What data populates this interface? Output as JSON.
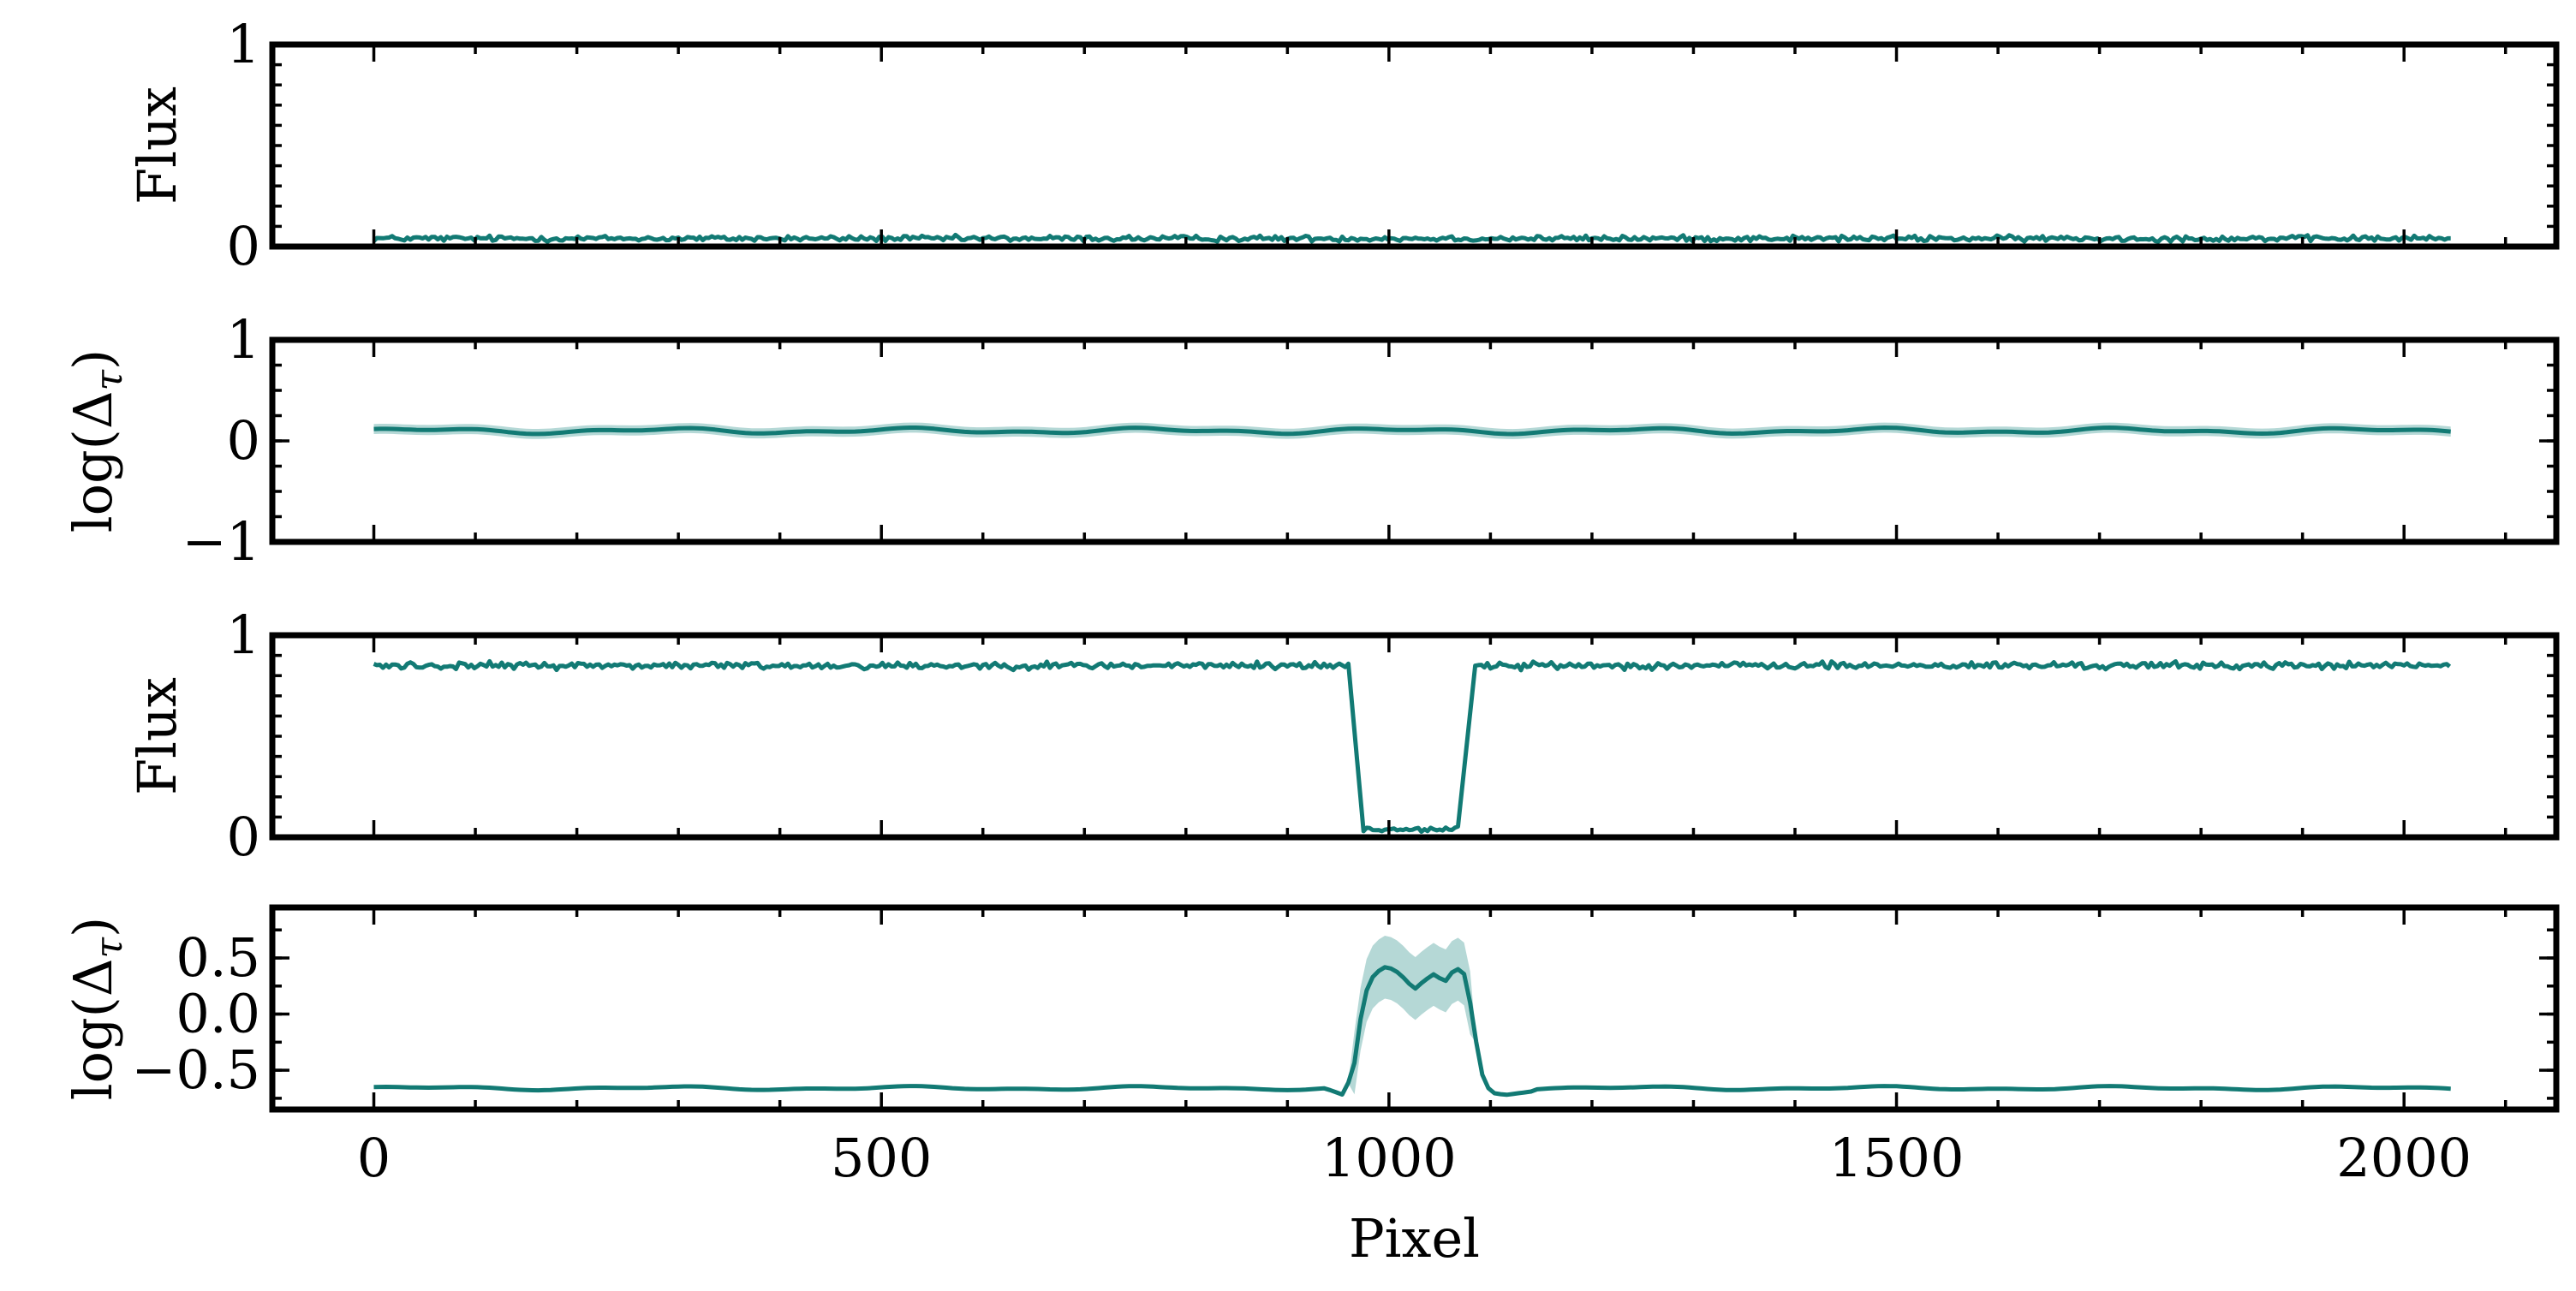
{
  "colors": {
    "line": "#127a74",
    "band": "#a8d1cf"
  },
  "xlabel": "Pixel",
  "xticks": [
    "0",
    "500",
    "1000",
    "1500",
    "2000"
  ],
  "chart_data": [
    {
      "type": "line",
      "ylabel": "Flux",
      "ylabel_math": false,
      "ylim": [
        0,
        1
      ],
      "xlim": [
        -100,
        2150
      ],
      "yticks": [
        {
          "v": 1,
          "label": "1"
        },
        {
          "v": 0,
          "label": "0"
        }
      ],
      "series": [
        {
          "kind": "noise",
          "segments": [
            {
              "x0": 0,
              "x1": 2047,
              "level": 0.04,
              "noise": 0.012
            }
          ]
        }
      ]
    },
    {
      "type": "line",
      "ylabel": "log(Δτ)",
      "ylabel_math": true,
      "ylim": [
        -1,
        1
      ],
      "xlim": [
        -100,
        2150
      ],
      "yticks": [
        {
          "v": 1,
          "label": "1"
        },
        {
          "v": 0,
          "label": "0"
        },
        {
          "v": -1,
          "label": "−1"
        }
      ],
      "series": [
        {
          "kind": "smooth",
          "baseline": 0.1,
          "wiggle": 0.02,
          "band": 0.05
        }
      ]
    },
    {
      "type": "line",
      "ylabel": "Flux",
      "ylabel_math": false,
      "ylim": [
        0,
        1
      ],
      "xlim": [
        -100,
        2150
      ],
      "yticks": [
        {
          "v": 1,
          "label": "1"
        },
        {
          "v": 0,
          "label": "0"
        }
      ],
      "series": [
        {
          "kind": "noise",
          "segments": [
            {
              "x0": 0,
              "x1": 960,
              "level": 0.85,
              "noise": 0.015
            },
            {
              "x0": 975,
              "x1": 1070,
              "level": 0.04,
              "noise": 0.012
            },
            {
              "x0": 1085,
              "x1": 2047,
              "level": 0.85,
              "noise": 0.015
            }
          ],
          "edges": [
            [
              960,
              975
            ],
            [
              1070,
              1085
            ]
          ]
        }
      ]
    },
    {
      "type": "line",
      "ylabel": "log(Δτ)",
      "ylabel_math": true,
      "ylim": [
        -0.85,
        0.95
      ],
      "xlim": [
        -100,
        2150
      ],
      "yticks": [
        {
          "v": 0.5,
          "label": "0.5"
        },
        {
          "v": 0.0,
          "label": "0.0"
        },
        {
          "v": -0.5,
          "label": "−0.5"
        }
      ],
      "series": [
        {
          "kind": "feature",
          "baseline": -0.66,
          "wiggle": 0.012,
          "band": 0.01,
          "feature_points": [
            [
              940,
              -0.67
            ],
            [
              955,
              -0.72
            ],
            [
              965,
              -0.5
            ],
            [
              975,
              0.15
            ],
            [
              985,
              0.35
            ],
            [
              995,
              0.42
            ],
            [
              1005,
              0.4
            ],
            [
              1015,
              0.32
            ],
            [
              1025,
              0.22
            ],
            [
              1035,
              0.3
            ],
            [
              1045,
              0.36
            ],
            [
              1055,
              0.28
            ],
            [
              1060,
              0.36
            ],
            [
              1068,
              0.4
            ],
            [
              1075,
              0.35
            ],
            [
              1082,
              0.0
            ],
            [
              1090,
              -0.5
            ],
            [
              1100,
              -0.7
            ],
            [
              1115,
              -0.72
            ],
            [
              1140,
              -0.69
            ]
          ],
          "feature_band": 0.28
        }
      ]
    }
  ]
}
